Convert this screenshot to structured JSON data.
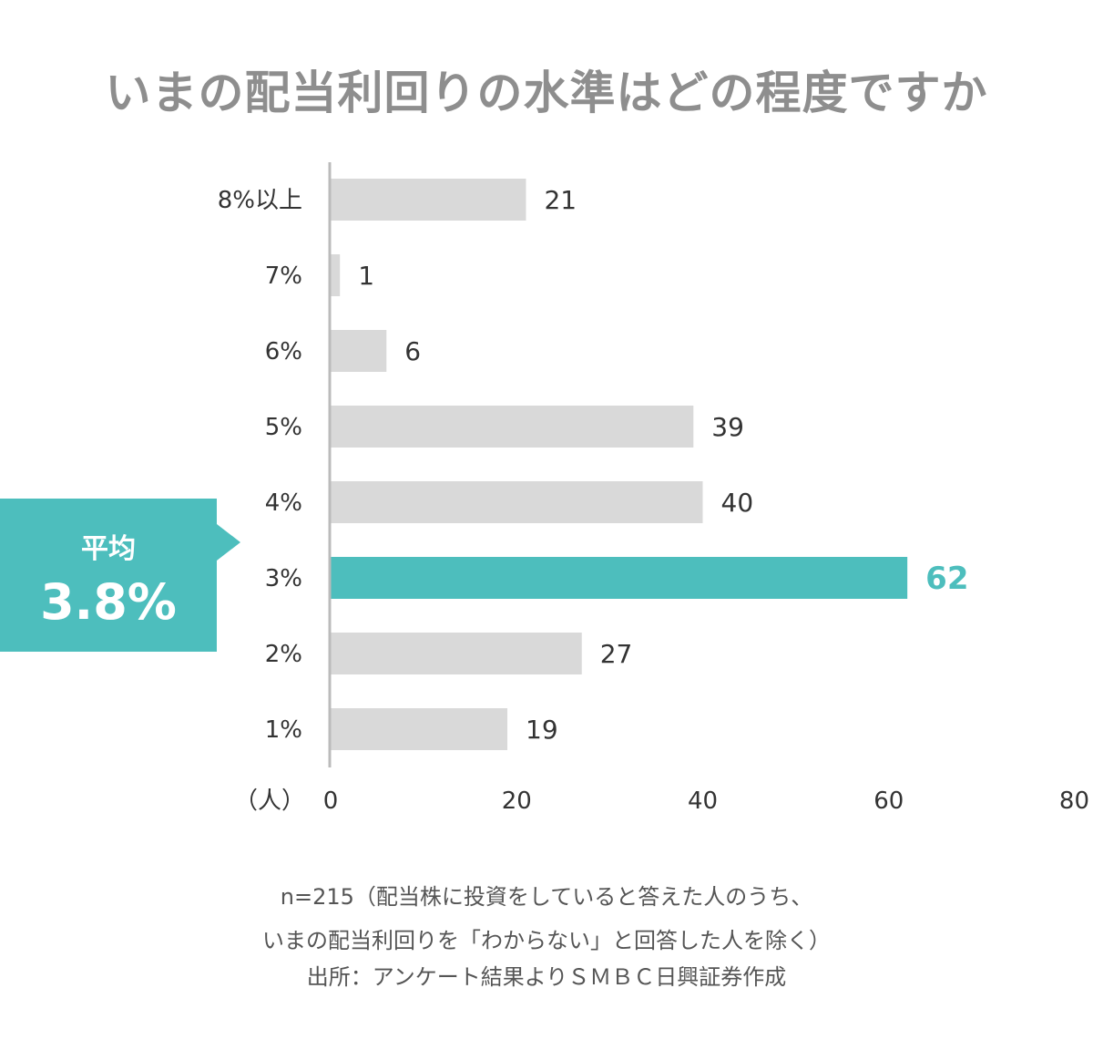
{
  "title": "いまの配当利回りの水準はどの程度ですか",
  "average": {
    "label": "平均",
    "value": "3.8%"
  },
  "notes": [
    "n=215（配当株に投資をしていると答えた人のうち、",
    "いまの配当利回りを「わからない」と回答した人を除く）",
    "出所：アンケート結果よりＳＭＢＣ日興証券作成"
  ],
  "colors": {
    "bar": "#d9d9d9",
    "highlight": "#4dbebd",
    "axis": "#bbbbbb",
    "title": "#8e8e8e"
  },
  "chart_data": {
    "type": "bar",
    "orientation": "horizontal",
    "title": "いまの配当利回りの水準はどの程度ですか",
    "xlabel": "（人）",
    "categories": [
      "8%以上",
      "7%",
      "6%",
      "5%",
      "4%",
      "3%",
      "2%",
      "1%"
    ],
    "values": [
      21,
      1,
      6,
      39,
      40,
      62,
      27,
      19
    ],
    "highlight_category": "3%",
    "xlim": [
      0,
      80
    ],
    "xticks": [
      0,
      20,
      40,
      60,
      80
    ],
    "grid": false,
    "legend": "none"
  }
}
